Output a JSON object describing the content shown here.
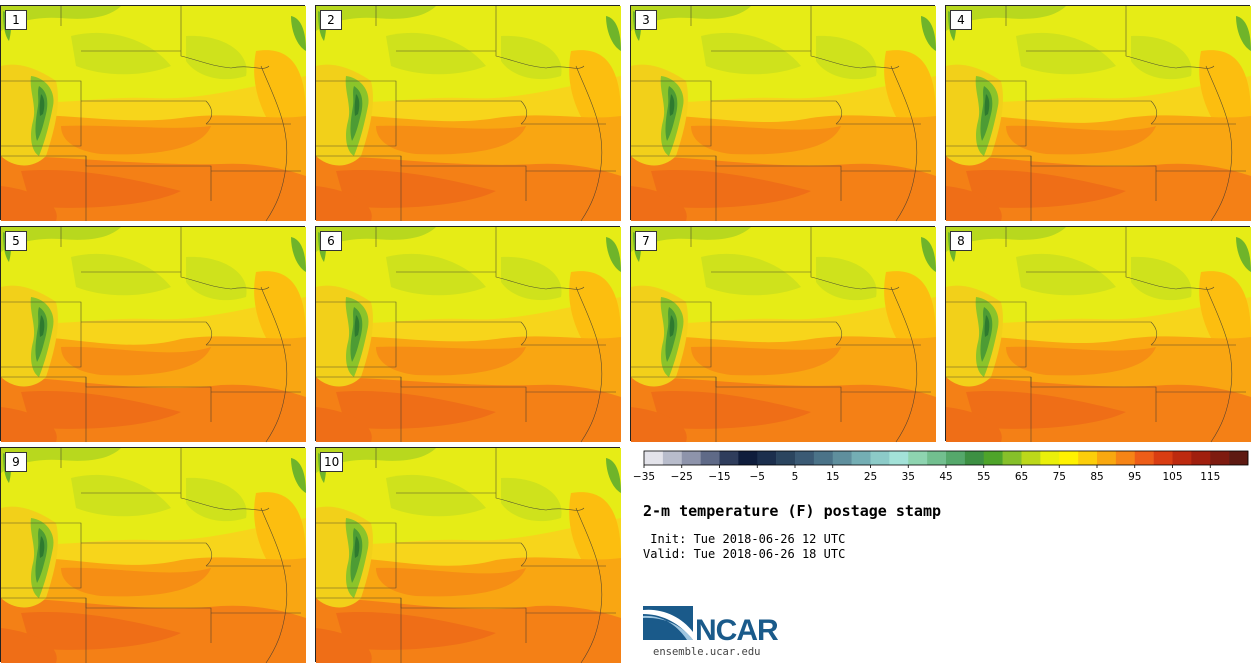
{
  "panels": [
    "1",
    "2",
    "3",
    "4",
    "5",
    "6",
    "7",
    "8",
    "9",
    "10"
  ],
  "figure": {
    "title": "2-m temperature (F) postage stamp",
    "init": " Init: Tue 2018-06-26 12 UTC",
    "valid": "Valid: Tue 2018-06-26 18 UTC"
  },
  "colorbar": {
    "tick_labels": [
      "−35",
      "−25",
      "−15",
      "−5",
      "5",
      "15",
      "25",
      "35",
      "45",
      "55",
      "65",
      "75",
      "85",
      "95",
      "105",
      "115"
    ],
    "colors": [
      "#e3e3ea",
      "#b8bccb",
      "#8e94ab",
      "#5f6a87",
      "#2f3d5c",
      "#0f1d3c",
      "#1c2f4d",
      "#2b455f",
      "#3b5a74",
      "#4b7388",
      "#5f8f9d",
      "#74aeb4",
      "#8ccbc8",
      "#a3e2d8",
      "#8ed4b0",
      "#72bf8f",
      "#55a86b",
      "#3d9043",
      "#4ea42a",
      "#86c02a",
      "#bcd81a",
      "#eaf00a",
      "#fff200",
      "#fcce0a",
      "#f9a80f",
      "#f68416",
      "#ed5d18",
      "#d93d12",
      "#bd2a0f",
      "#a01f0e",
      "#7e1b10",
      "#5e1a12"
    ]
  },
  "logo": {
    "text": "NCAR",
    "url": "ensemble.ucar.edu"
  }
}
